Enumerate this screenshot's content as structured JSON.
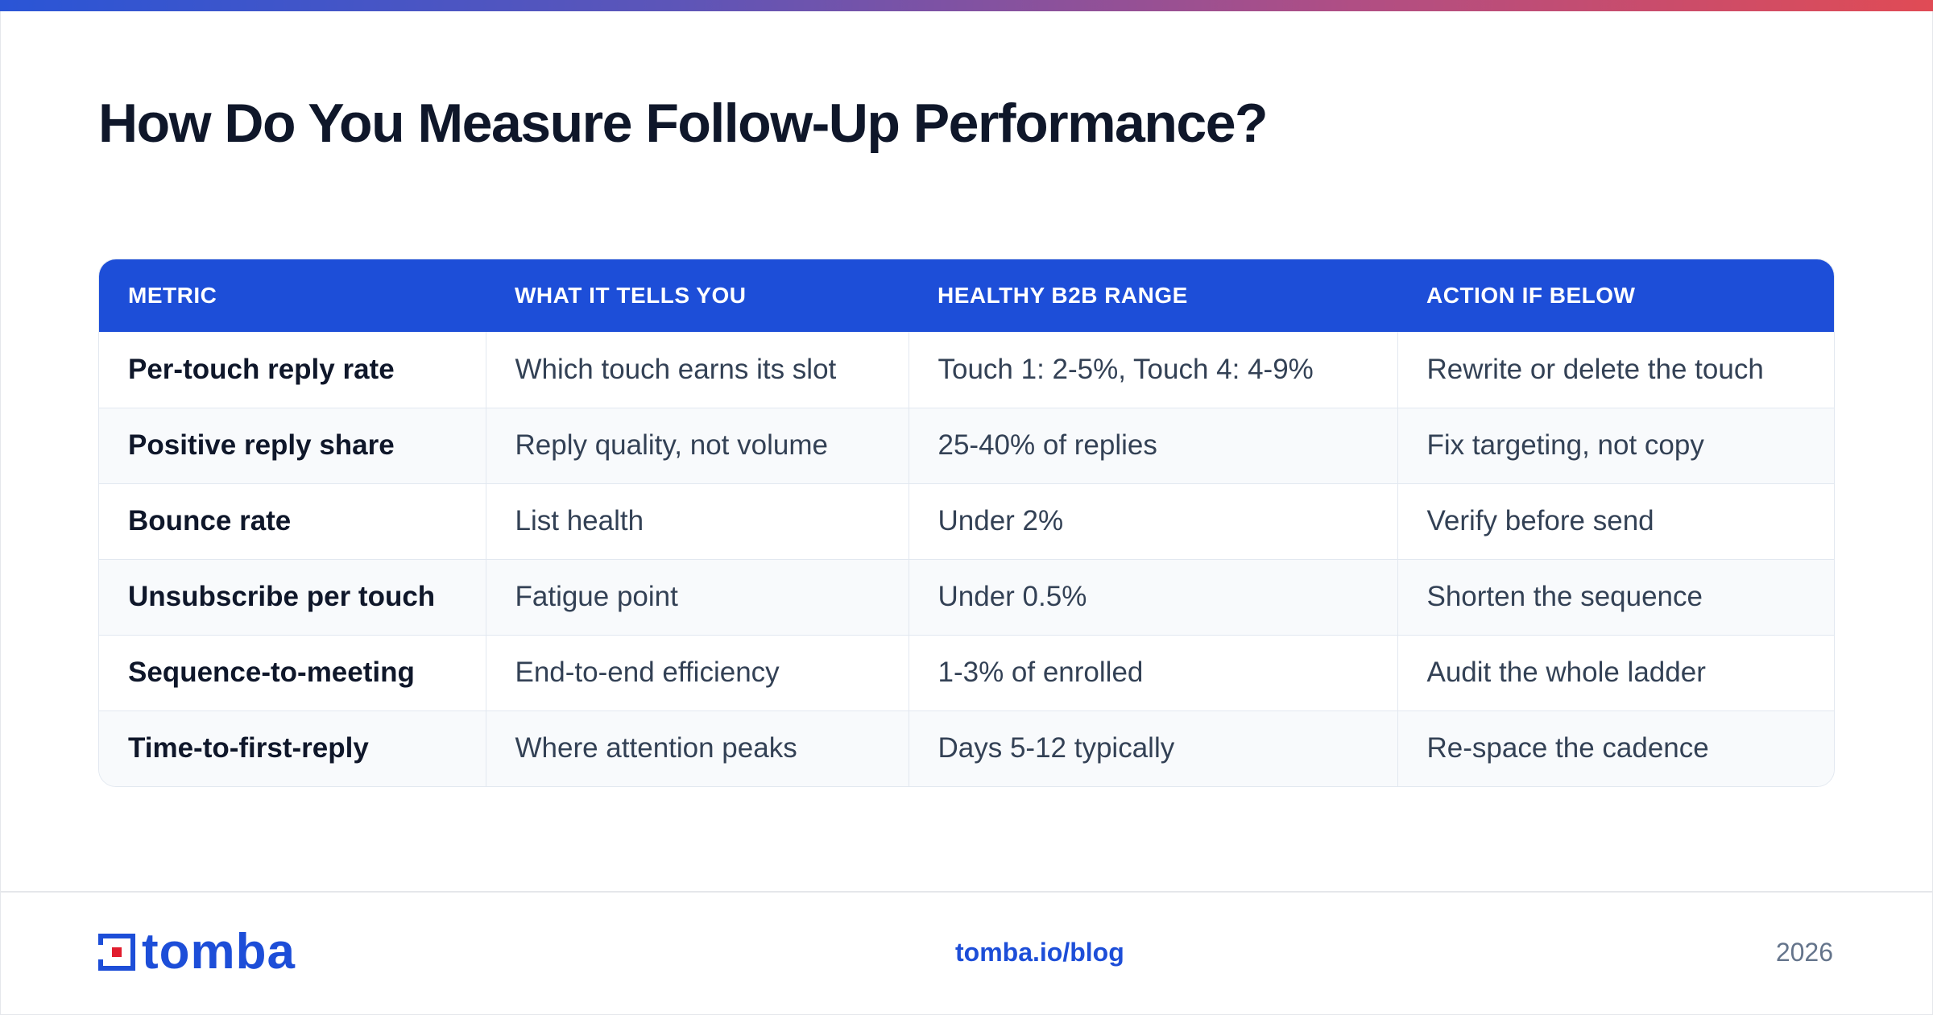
{
  "page": {
    "title": "How Do You Measure Follow-Up Performance?"
  },
  "table": {
    "headers": [
      "METRIC",
      "WHAT IT TELLS YOU",
      "HEALTHY B2B RANGE",
      "ACTION IF BELOW"
    ],
    "rows": [
      [
        "Per-touch reply rate",
        "Which touch earns its slot",
        "Touch 1: 2-5%, Touch 4: 4-9%",
        "Rewrite or delete the touch"
      ],
      [
        "Positive reply share",
        "Reply quality, not volume",
        "25-40% of replies",
        "Fix targeting, not copy"
      ],
      [
        "Bounce rate",
        "List health",
        "Under 2%",
        "Verify before send"
      ],
      [
        "Unsubscribe per touch",
        "Fatigue point",
        "Under 0.5%",
        "Shorten the sequence"
      ],
      [
        "Sequence-to-meeting",
        "End-to-end efficiency",
        "1-3% of enrolled",
        "Audit the whole ladder"
      ],
      [
        "Time-to-first-reply",
        "Where attention peaks",
        "Days 5-12 typically",
        "Re-space the cadence"
      ]
    ]
  },
  "footer": {
    "logo_text": "tomba",
    "link": "tomba.io/blog",
    "year": "2026"
  },
  "colors": {
    "accent": "#1d4ed8",
    "title": "#0f172a",
    "body_text": "#334155",
    "logo_red": "#e11d2e",
    "gradient_start": "#2a55d6",
    "gradient_end": "#e04b55"
  },
  "icons": {
    "logo": "tomba-logo-icon"
  }
}
